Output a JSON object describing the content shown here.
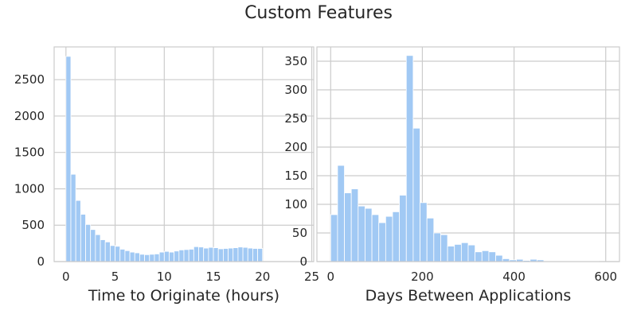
{
  "figure": {
    "title": "Custom Features"
  },
  "colors": {
    "bar": "#a1c9f4",
    "grid": "#cccccc",
    "text": "#262626",
    "background": "#ffffff"
  },
  "chart_data": [
    {
      "type": "bar",
      "subtype": "histogram",
      "xlabel": "Time to Originate (hours)",
      "ylabel": "",
      "xlim": [
        -1.2,
        25.2
      ],
      "ylim": [
        0,
        2950
      ],
      "xticks": [
        0,
        5,
        10,
        15,
        20,
        25
      ],
      "yticks": [
        0,
        500,
        1000,
        1500,
        2000,
        2500
      ],
      "bin_start": 0,
      "bin_width": 0.5,
      "values": [
        2820,
        1200,
        840,
        650,
        510,
        440,
        370,
        300,
        270,
        220,
        210,
        170,
        150,
        130,
        120,
        100,
        95,
        100,
        105,
        130,
        140,
        130,
        145,
        160,
        165,
        170,
        205,
        200,
        185,
        195,
        190,
        175,
        180,
        185,
        190,
        200,
        195,
        185,
        180,
        180
      ],
      "grid": true,
      "legend": "none"
    },
    {
      "type": "bar",
      "subtype": "histogram",
      "xlabel": "Days Between Applications",
      "ylabel": "",
      "xlim": [
        -30,
        630
      ],
      "ylim": [
        0,
        375
      ],
      "xticks": [
        0,
        200,
        400,
        600
      ],
      "yticks": [
        0,
        50,
        100,
        150,
        200,
        250,
        300,
        350
      ],
      "bin_start": 0,
      "bin_width": 15,
      "values": [
        82,
        168,
        120,
        127,
        97,
        93,
        82,
        68,
        79,
        87,
        116,
        360,
        233,
        103,
        76,
        50,
        47,
        27,
        30,
        33,
        29,
        17,
        19,
        17,
        11,
        5,
        3,
        4,
        2,
        4,
        3,
        1,
        1,
        1,
        1,
        1,
        1,
        1,
        1,
        0
      ],
      "grid": true,
      "legend": "none"
    }
  ]
}
